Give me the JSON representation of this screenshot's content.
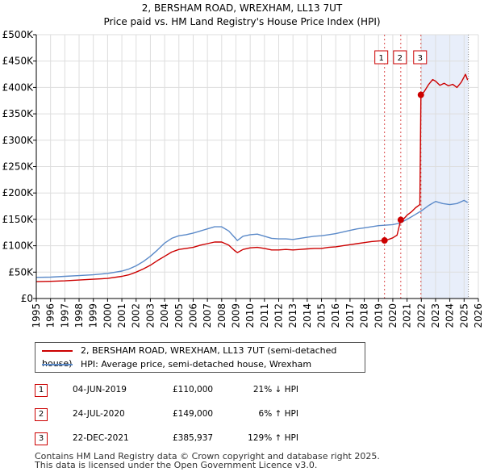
{
  "title_line1": "2, BERSHAM ROAD, WREXHAM, LL13 7UT",
  "title_line2": "Price paid vs. HM Land Registry's House Price Index (HPI)",
  "chart_data": {
    "type": "line",
    "title": "2, BERSHAM ROAD, WREXHAM, LL13 7UT — Price paid vs. HM Land Registry's House Price Index (HPI)",
    "xlim": [
      1995,
      2026
    ],
    "ylim": [
      0,
      500000
    ],
    "y_ticks": [
      {
        "value": 0,
        "label": "£0"
      },
      {
        "value": 50000,
        "label": "£50K"
      },
      {
        "value": 100000,
        "label": "£100K"
      },
      {
        "value": 150000,
        "label": "£150K"
      },
      {
        "value": 200000,
        "label": "£200K"
      },
      {
        "value": 250000,
        "label": "£250K"
      },
      {
        "value": 300000,
        "label": "£300K"
      },
      {
        "value": 350000,
        "label": "£350K"
      },
      {
        "value": 400000,
        "label": "£400K"
      },
      {
        "value": 450000,
        "label": "£450K"
      },
      {
        "value": 500000,
        "label": "£500K"
      }
    ],
    "x_ticks": [
      "1995",
      "1996",
      "1997",
      "1998",
      "1999",
      "2000",
      "2001",
      "2002",
      "2003",
      "2004",
      "2005",
      "2006",
      "2007",
      "2008",
      "2009",
      "2010",
      "2011",
      "2012",
      "2013",
      "2014",
      "2015",
      "2016",
      "2017",
      "2018",
      "2019",
      "2020",
      "2021",
      "2022",
      "2023",
      "2024",
      "2025",
      "2026"
    ],
    "grid": true,
    "shaded_region": {
      "from": 2021.97,
      "to": 2025.3
    },
    "series": [
      {
        "name": "2, BERSHAM ROAD, WREXHAM, LL13 7UT (semi-detached house)",
        "color": "#cc0000",
        "points": [
          [
            1995.0,
            32000
          ],
          [
            1996.0,
            32500
          ],
          [
            1997.0,
            33500
          ],
          [
            1998.0,
            35000
          ],
          [
            1999.0,
            36500
          ],
          [
            2000.0,
            38000
          ],
          [
            2001.0,
            42000
          ],
          [
            2001.5,
            45000
          ],
          [
            2002.0,
            50000
          ],
          [
            2002.5,
            56000
          ],
          [
            2003.0,
            63000
          ],
          [
            2003.5,
            72000
          ],
          [
            2004.0,
            80000
          ],
          [
            2004.5,
            88000
          ],
          [
            2005.0,
            93000
          ],
          [
            2005.5,
            95000
          ],
          [
            2006.0,
            97000
          ],
          [
            2006.5,
            101000
          ],
          [
            2007.0,
            104000
          ],
          [
            2007.5,
            107000
          ],
          [
            2008.0,
            107000
          ],
          [
            2008.5,
            101000
          ],
          [
            2008.9,
            91000
          ],
          [
            2009.1,
            87000
          ],
          [
            2009.5,
            93000
          ],
          [
            2010.0,
            96000
          ],
          [
            2010.5,
            97000
          ],
          [
            2011.0,
            95000
          ],
          [
            2011.5,
            92000
          ],
          [
            2012.0,
            92000
          ],
          [
            2012.5,
            93000
          ],
          [
            2013.0,
            92000
          ],
          [
            2013.5,
            93000
          ],
          [
            2014.0,
            94000
          ],
          [
            2014.5,
            95000
          ],
          [
            2015.0,
            95000
          ],
          [
            2015.5,
            97000
          ],
          [
            2016.0,
            98000
          ],
          [
            2016.5,
            100000
          ],
          [
            2017.0,
            102000
          ],
          [
            2017.5,
            104000
          ],
          [
            2018.0,
            106000
          ],
          [
            2018.5,
            108000
          ],
          [
            2019.0,
            109000
          ],
          [
            2019.42,
            110000
          ],
          [
            2019.7,
            112000
          ],
          [
            2020.0,
            115000
          ],
          [
            2020.3,
            120000
          ],
          [
            2020.56,
            149000
          ],
          [
            2020.8,
            152000
          ],
          [
            2021.0,
            158000
          ],
          [
            2021.3,
            164000
          ],
          [
            2021.6,
            172000
          ],
          [
            2021.9,
            178000
          ],
          [
            2021.97,
            385937
          ],
          [
            2022.2,
            392000
          ],
          [
            2022.5,
            405000
          ],
          [
            2022.8,
            415000
          ],
          [
            2023.0,
            412000
          ],
          [
            2023.3,
            404000
          ],
          [
            2023.6,
            408000
          ],
          [
            2023.9,
            403000
          ],
          [
            2024.2,
            406000
          ],
          [
            2024.5,
            400000
          ],
          [
            2024.8,
            410000
          ],
          [
            2025.0,
            420000
          ],
          [
            2025.1,
            425000
          ],
          [
            2025.25,
            414000
          ]
        ]
      },
      {
        "name": "HPI: Average price, semi-detached house, Wrexham",
        "color": "#5b8ac9",
        "points": [
          [
            1995.0,
            40000
          ],
          [
            1996.0,
            40500
          ],
          [
            1997.0,
            42000
          ],
          [
            1998.0,
            43500
          ],
          [
            1999.0,
            45000
          ],
          [
            2000.0,
            47500
          ],
          [
            2001.0,
            52000
          ],
          [
            2001.5,
            56000
          ],
          [
            2002.0,
            62000
          ],
          [
            2002.5,
            70000
          ],
          [
            2003.0,
            80000
          ],
          [
            2003.5,
            92000
          ],
          [
            2004.0,
            105000
          ],
          [
            2004.5,
            114000
          ],
          [
            2005.0,
            119000
          ],
          [
            2005.5,
            121000
          ],
          [
            2006.0,
            124000
          ],
          [
            2006.5,
            128000
          ],
          [
            2007.0,
            132000
          ],
          [
            2007.5,
            136000
          ],
          [
            2008.0,
            136000
          ],
          [
            2008.5,
            128000
          ],
          [
            2008.9,
            116000
          ],
          [
            2009.1,
            110000
          ],
          [
            2009.5,
            118000
          ],
          [
            2010.0,
            121000
          ],
          [
            2010.5,
            122000
          ],
          [
            2011.0,
            118000
          ],
          [
            2011.5,
            114000
          ],
          [
            2012.0,
            113000
          ],
          [
            2012.5,
            113000
          ],
          [
            2013.0,
            112000
          ],
          [
            2013.5,
            114000
          ],
          [
            2014.0,
            116000
          ],
          [
            2014.5,
            118000
          ],
          [
            2015.0,
            119000
          ],
          [
            2015.5,
            121000
          ],
          [
            2016.0,
            123000
          ],
          [
            2016.5,
            126000
          ],
          [
            2017.0,
            129000
          ],
          [
            2017.5,
            132000
          ],
          [
            2018.0,
            134000
          ],
          [
            2018.5,
            136000
          ],
          [
            2019.0,
            138000
          ],
          [
            2019.5,
            139000
          ],
          [
            2020.0,
            140000
          ],
          [
            2020.5,
            143000
          ],
          [
            2021.0,
            150000
          ],
          [
            2021.5,
            158000
          ],
          [
            2022.0,
            166000
          ],
          [
            2022.5,
            176000
          ],
          [
            2023.0,
            184000
          ],
          [
            2023.5,
            180000
          ],
          [
            2024.0,
            178000
          ],
          [
            2024.5,
            180000
          ],
          [
            2025.0,
            186000
          ],
          [
            2025.25,
            182000
          ]
        ]
      }
    ],
    "markers": [
      {
        "label": "1",
        "x": 2019.42,
        "y": 110000
      },
      {
        "label": "2",
        "x": 2020.56,
        "y": 149000
      },
      {
        "label": "3",
        "x": 2021.97,
        "y": 385937
      }
    ]
  },
  "legend": {
    "property_label": "2, BERSHAM ROAD, WREXHAM, LL13 7UT (semi-detached house)",
    "hpi_label": "HPI: Average price, semi-detached house, Wrexham",
    "property_color": "#cc0000",
    "hpi_color": "#5b8ac9"
  },
  "sales": [
    {
      "num": "1",
      "date": "04-JUN-2019",
      "price": "£110,000",
      "hpi": "21% ↓ HPI"
    },
    {
      "num": "2",
      "date": "24-JUL-2020",
      "price": "£149,000",
      "hpi": "6% ↑ HPI"
    },
    {
      "num": "3",
      "date": "22-DEC-2021",
      "price": "£385,937",
      "hpi": "129% ↑ HPI"
    }
  ],
  "footer_line1": "Contains HM Land Registry data © Crown copyright and database right 2025.",
  "footer_line2": "This data is licensed under the Open Government Licence v3.0."
}
